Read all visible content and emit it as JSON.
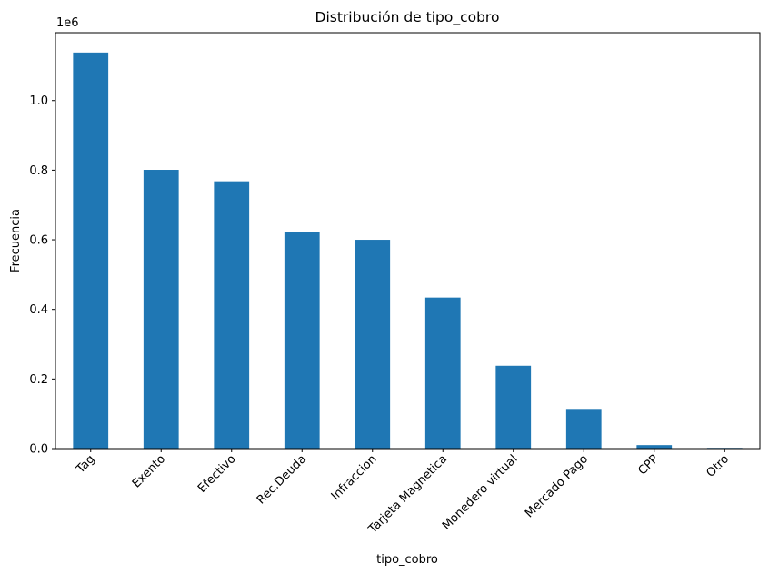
{
  "chart_data": {
    "type": "bar",
    "title": "Distribución de tipo_cobro",
    "xlabel": "tipo_cobro",
    "ylabel": "Frecuencia",
    "y_offset_label": "1e6",
    "categories": [
      "Tag",
      "Exento",
      "Efectivo",
      "Rec.Deuda",
      "Infraccion",
      "Tarjeta Magnetica",
      "Monedero virtual",
      "Mercado Pago",
      "CPP",
      "Otro"
    ],
    "values": [
      1138000,
      801000,
      768000,
      621000,
      600000,
      434000,
      238000,
      114000,
      10000,
      2000
    ],
    "ylim": [
      0,
      1195000
    ],
    "yticks": [
      0,
      200000,
      400000,
      600000,
      800000,
      1000000
    ],
    "ytick_labels": [
      "0.0",
      "0.2",
      "0.4",
      "0.6",
      "0.8",
      "1.0"
    ],
    "x_tick_rotation_deg": 45,
    "grid": false,
    "legend": "none",
    "bar_color": "#1f77b4"
  }
}
